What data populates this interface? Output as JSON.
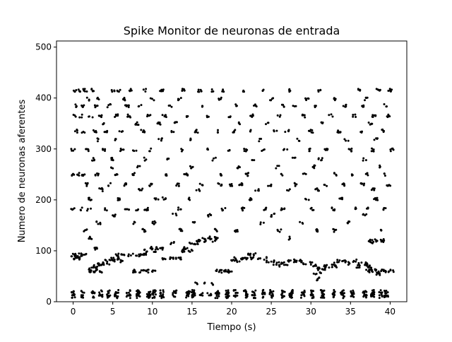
{
  "chart_data": {
    "type": "scatter",
    "title": "Spike Monitor de neuronas de entrada",
    "xlabel": "Tiempo (s)",
    "ylabel": "Numero de neuronas aferentes",
    "xlim": [
      -2.1,
      42.1
    ],
    "ylim": [
      0,
      512
    ],
    "xticks": [
      0,
      5,
      10,
      15,
      20,
      25,
      30,
      35,
      40
    ],
    "yticks": [
      0,
      100,
      200,
      300,
      400,
      500
    ],
    "grid": false,
    "marker_color": "#000000",
    "bands": [
      {
        "neuron": 415,
        "x": [
          0.2,
          0.8,
          1.5,
          2.5,
          5.0,
          5.8,
          7.2,
          9.0,
          11.2,
          14.0,
          16.0,
          17.5,
          19.0,
          21.5,
          23.8,
          27.5,
          31.0,
          36.0,
          38.5,
          40.0
        ]
      },
      {
        "neuron": 398,
        "x": [
          2.0,
          3.2,
          6.5,
          10.0,
          13.5,
          18.5,
          25.0,
          29.5,
          33.0,
          37.0
        ]
      },
      {
        "neuron": 385,
        "x": [
          0.5,
          1.2,
          3.0,
          4.5,
          6.8,
          8.5,
          12.2,
          16.5,
          20.5,
          23.0,
          26.5,
          28.0,
          30.5,
          34.2,
          36.5,
          39.5
        ]
      },
      {
        "neuron": 365,
        "x": [
          0.1,
          1.0,
          2.2,
          3.5,
          5.5,
          7.0,
          9.5,
          11.5,
          14.5,
          17.0,
          19.8,
          22.5,
          26.0,
          29.0,
          32.5,
          35.5,
          38.0,
          39.8
        ]
      },
      {
        "neuron": 350,
        "x": [
          4.0,
          8.0,
          10.8,
          13.0,
          21.0,
          24.5,
          31.5,
          37.5
        ]
      },
      {
        "neuron": 335,
        "x": [
          0.3,
          1.3,
          2.8,
          4.2,
          6.0,
          8.8,
          12.5,
          15.5,
          18.2,
          20.2,
          22.2,
          25.5,
          27.0,
          30.0,
          33.5,
          36.2,
          39.0
        ]
      },
      {
        "neuron": 318,
        "x": [
          3.3,
          5.2,
          11.0,
          14.8,
          23.5,
          28.5,
          34.5,
          38.2
        ]
      },
      {
        "neuron": 298,
        "x": [
          0.0,
          1.8,
          3.8,
          6.2,
          7.8,
          9.8,
          13.8,
          16.8,
          19.5,
          21.8,
          24.0,
          26.8,
          29.8,
          32.0,
          35.0,
          37.8,
          40.2
        ]
      },
      {
        "neuron": 280,
        "x": [
          2.5,
          5.0,
          9.2,
          12.0,
          17.8,
          22.8,
          27.8,
          31.2,
          36.8
        ]
      },
      {
        "neuron": 265,
        "x": [
          4.8,
          8.2,
          15.0,
          20.8,
          25.8,
          30.5,
          38.8
        ]
      },
      {
        "neuron": 250,
        "x": [
          0.0,
          0.6,
          1.2,
          3.0,
          5.5,
          7.5,
          11.8,
          14.2,
          18.8,
          22.0,
          26.2,
          29.2,
          33.2,
          35.2,
          37.2,
          39.5
        ]
      },
      {
        "neuron": 230,
        "x": [
          1.8,
          4.5,
          6.5,
          9.8,
          13.2,
          16.2,
          18.5,
          20.0,
          21.2,
          24.8,
          28.0,
          31.8,
          34.0,
          36.5,
          39.8
        ]
      },
      {
        "neuron": 220,
        "x": [
          3.5,
          8.5,
          15.8,
          23.2,
          27.2,
          30.8,
          37.8
        ]
      },
      {
        "neuron": 202,
        "x": [
          2.2,
          5.8,
          10.5,
          11.5,
          14.8,
          22.5,
          29.5,
          33.8,
          38.2
        ]
      },
      {
        "neuron": 182,
        "x": [
          0.0,
          1.0,
          2.0,
          4.2,
          6.8,
          8.0,
          9.2,
          13.5,
          19.0,
          21.5,
          24.2,
          26.5,
          30.2,
          32.8,
          35.5,
          37.2,
          39.2
        ]
      },
      {
        "neuron": 170,
        "x": [
          5.2,
          12.8,
          17.2,
          25.2,
          36.8
        ]
      },
      {
        "neuron": 155,
        "x": [
          3.2,
          7.8,
          10.2,
          15.2,
          23.8,
          28.8,
          34.8
        ]
      },
      {
        "neuron": 140,
        "x": [
          1.5,
          9.0,
          13.5,
          18.0,
          20.5,
          26.0,
          30.8,
          33.0,
          38.8
        ]
      },
      {
        "neuron": 125,
        "x": [
          2.2,
          16.5,
          17.2,
          18.0,
          27.2
        ]
      },
      {
        "neuron": 120,
        "x": [
          15.8,
          16.8,
          17.8,
          37.5,
          38.2,
          39.0
        ]
      },
      {
        "neuron": 115,
        "x": [
          14.8,
          15.5,
          12.5,
          37.8
        ]
      },
      {
        "neuron": 105,
        "x": [
          9.8,
          10.5,
          11.2,
          14.2,
          2.8
        ]
      },
      {
        "neuron": 100,
        "x": [
          9.2,
          10.2,
          13.8,
          14.8
        ]
      },
      {
        "neuron": 92,
        "x": [
          0.0,
          0.4,
          0.8,
          1.2,
          1.6,
          5.5,
          6.3,
          7.2,
          7.8,
          8.4,
          9.0,
          22.2,
          23.0
        ]
      },
      {
        "neuron": 85,
        "x": [
          0.0,
          0.5,
          1.0,
          5.0,
          5.8,
          11.5,
          12.2,
          12.8,
          13.5,
          20.5,
          21.2,
          21.8,
          22.5,
          23.5,
          24.2
        ]
      },
      {
        "neuron": 80,
        "x": [
          4.2,
          4.8,
          5.4,
          6.0,
          20.2,
          20.8,
          24.5,
          25.2,
          27.2,
          28.0,
          28.8,
          33.5,
          34.2,
          35.5
        ]
      },
      {
        "neuron": 75,
        "x": [
          3.2,
          3.8,
          4.4,
          25.5,
          26.2,
          26.8,
          29.2,
          30.0,
          32.8,
          34.8,
          36.2,
          37.0
        ]
      },
      {
        "neuron": 70,
        "x": [
          2.8,
          3.4,
          25.8,
          30.5,
          31.8,
          32.5,
          33.2,
          36.0,
          37.2
        ]
      },
      {
        "neuron": 65,
        "x": [
          2.2,
          2.8,
          31.0,
          31.6,
          37.5,
          38.0
        ]
      },
      {
        "neuron": 60,
        "x": [
          2.2,
          2.8,
          3.4,
          7.8,
          8.4,
          9.0,
          9.6,
          10.2,
          18.0,
          18.6,
          19.2,
          19.8,
          37.2,
          37.8,
          38.4,
          39.0,
          39.6,
          40.2
        ]
      },
      {
        "neuron": 55,
        "x": [
          30.5,
          31.2,
          38.5
        ]
      },
      {
        "neuron": 45,
        "x": [
          31.0
        ]
      },
      {
        "neuron": 35,
        "x": [
          15.5,
          16.5,
          17.5
        ]
      },
      {
        "neuron": 20,
        "x": [
          0.0,
          1.2,
          2.5,
          3.5,
          4.5,
          5.5,
          7.0,
          8.2,
          9.5,
          10.2,
          11.2,
          12.8,
          14.5,
          15.2,
          18.2,
          19.5,
          20.5,
          21.8,
          22.8,
          24.0,
          25.0,
          26.5,
          27.5,
          29.0,
          30.2,
          31.5,
          33.0,
          34.0,
          35.2,
          36.8,
          37.8,
          38.8,
          39.5
        ]
      },
      {
        "neuron": 15,
        "x": [
          0.0,
          1.2,
          2.5,
          3.5,
          4.5,
          5.5,
          7.0,
          8.2,
          9.5,
          10.2,
          11.2,
          12.8,
          14.5,
          15.2,
          16.2,
          17.2,
          18.2,
          19.5,
          20.5,
          21.8,
          22.8,
          24.0,
          25.0,
          26.5,
          27.5,
          29.0,
          30.2,
          31.5,
          33.0,
          34.0,
          35.2,
          36.8,
          37.8,
          38.8,
          39.5
        ]
      },
      {
        "neuron": 10,
        "x": [
          0.0,
          1.2,
          2.5,
          3.5,
          4.5,
          5.5,
          7.0,
          8.2,
          9.5,
          10.2,
          11.2,
          12.8,
          14.5,
          15.2,
          18.2,
          19.5,
          20.5,
          21.8,
          22.8,
          24.0,
          25.0,
          26.5,
          27.5,
          29.0,
          30.2,
          31.5,
          33.0,
          34.0,
          35.2,
          36.8,
          37.8,
          38.8,
          39.5
        ]
      }
    ]
  }
}
